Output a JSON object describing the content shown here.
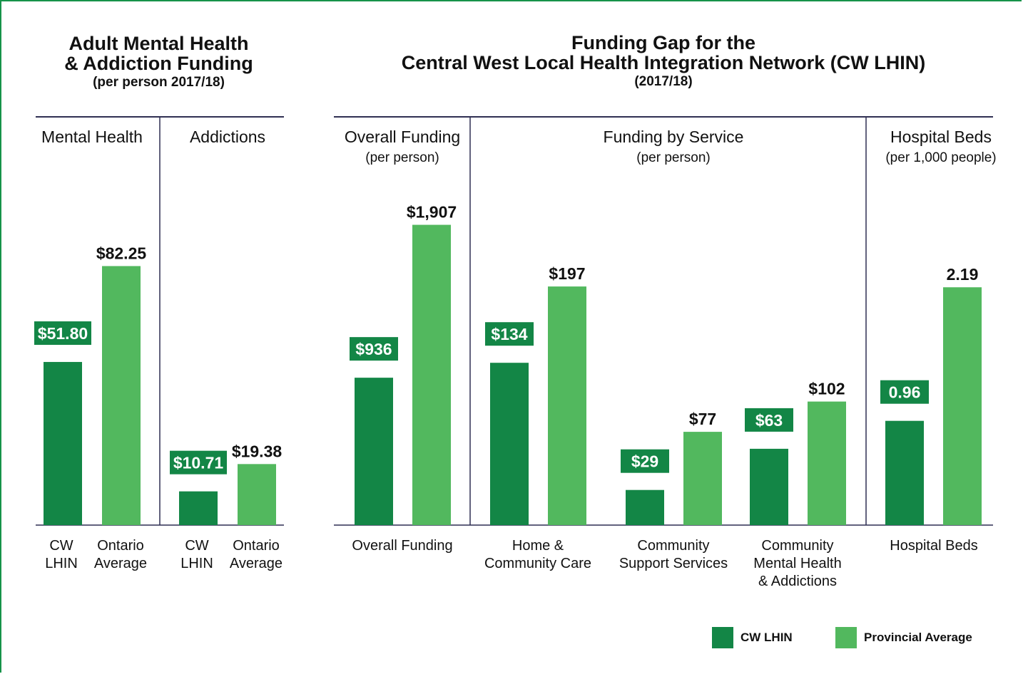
{
  "colors": {
    "cw": "#138646",
    "prov": "#52b85e",
    "rule": "#2f2f52",
    "text": "#111111",
    "label_text": "#ffffff"
  },
  "left_title": {
    "line1": "Adult Mental Health",
    "line2": "& Addiction Funding",
    "sub": "(per person 2017/18)"
  },
  "right_title": {
    "line1": "Funding Gap for the",
    "line2": "Central West Local Health Integration Network (CW LHIN)",
    "sub": "(2017/18)"
  },
  "legend": {
    "cw": "CW LHIN",
    "prov": "Provincial Average"
  },
  "chart_data": [
    {
      "type": "bar",
      "title": "Adult Mental Health & Addiction Funding (per person 2017/18)",
      "panels": [
        {
          "heading": [
            "Mental Health"
          ],
          "ylim": [
            0,
            100
          ],
          "bars": [
            {
              "series": "cw",
              "label": [
                "CW",
                "LHIN"
              ],
              "value": 51.8,
              "value_label": "$51.80"
            },
            {
              "series": "prov",
              "label": [
                "Ontario",
                "Average"
              ],
              "value": 82.25,
              "value_label": "$82.25"
            }
          ]
        },
        {
          "heading": [
            "Addictions"
          ],
          "ylim": [
            0,
            100
          ],
          "bars": [
            {
              "series": "cw",
              "label": [
                "CW",
                "LHIN"
              ],
              "value": 10.71,
              "value_label": "$10.71"
            },
            {
              "series": "prov",
              "label": [
                "Ontario",
                "Average"
              ],
              "value": 19.38,
              "value_label": "$19.38"
            }
          ]
        }
      ]
    },
    {
      "type": "bar",
      "title": "Funding Gap for the Central West Local Health Integration Network (CW LHIN) (2017/18)",
      "panels": [
        {
          "heading": [
            "Overall Funding",
            "(per person)"
          ],
          "ylim": [
            0,
            2000
          ],
          "groups": [
            {
              "label": [
                "Overall Funding"
              ],
              "cw": 936,
              "cw_label": "$936",
              "prov": 1907,
              "prov_label": "$1,907"
            }
          ]
        },
        {
          "heading": [
            "Funding by Service",
            "(per person)"
          ],
          "ylim": [
            0,
            260
          ],
          "groups": [
            {
              "label": [
                "Home &",
                "Community Care"
              ],
              "cw": 134,
              "cw_label": "$134",
              "prov": 197,
              "prov_label": "$197"
            },
            {
              "label": [
                "Community",
                "Support Services"
              ],
              "cw": 29,
              "cw_label": "$29",
              "prov": 77,
              "prov_label": "$77"
            },
            {
              "label": [
                "Community",
                "Mental Health",
                "& Addictions"
              ],
              "cw": 63,
              "cw_label": "$63",
              "prov": 102,
              "prov_label": "$102"
            }
          ]
        },
        {
          "heading": [
            "Hospital Beds",
            "(per 1,000 people)"
          ],
          "ylim": [
            0,
            2.9
          ],
          "groups": [
            {
              "label": [
                "Hospital Beds"
              ],
              "cw": 0.96,
              "cw_label": "0.96",
              "prov": 2.19,
              "prov_label": "2.19"
            }
          ]
        }
      ]
    }
  ]
}
